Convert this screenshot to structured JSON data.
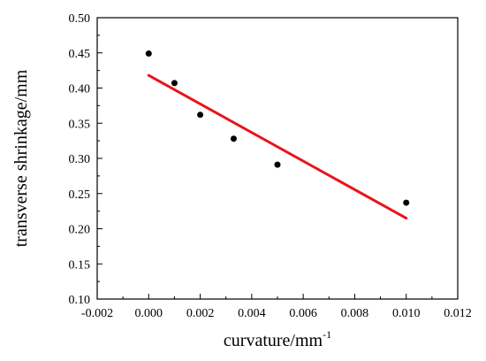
{
  "chart_data": {
    "type": "scatter",
    "title": "",
    "xlabel": "curvature/mm",
    "xlabel_superscript": "-1",
    "ylabel": "transverse shrinkage/mm",
    "xlim": [
      -0.002,
      0.012
    ],
    "ylim": [
      0.1,
      0.5
    ],
    "grid": false,
    "x_ticks": [
      "-0.002",
      "0.000",
      "0.002",
      "0.004",
      "0.006",
      "0.008",
      "0.010",
      "0.012"
    ],
    "y_ticks": [
      "0.10",
      "0.15",
      "0.20",
      "0.25",
      "0.30",
      "0.35",
      "0.40",
      "0.45",
      "0.50"
    ],
    "points": [
      {
        "x": 0.0,
        "y": 0.449
      },
      {
        "x": 0.001,
        "y": 0.407
      },
      {
        "x": 0.002,
        "y": 0.362
      },
      {
        "x": 0.0033,
        "y": 0.328
      },
      {
        "x": 0.005,
        "y": 0.291
      },
      {
        "x": 0.01,
        "y": 0.237
      }
    ],
    "fit_line": {
      "x": [
        0.0,
        0.01
      ],
      "y": [
        0.418,
        0.215
      ]
    },
    "colors": {
      "points": "#000000",
      "fit_line": "#e8141c",
      "axes": "#000000"
    }
  }
}
